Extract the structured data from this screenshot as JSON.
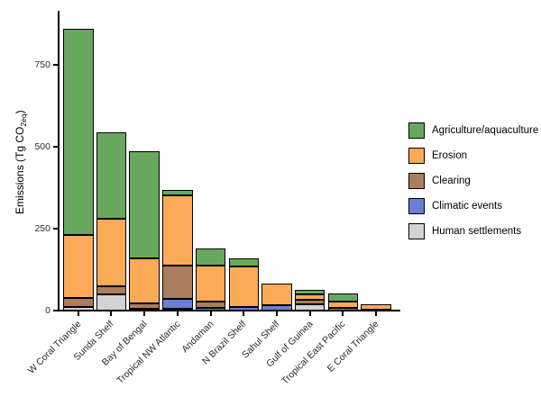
{
  "figure": {
    "background": "#ffffff",
    "axis_color": "#000000",
    "bar_border_color": "#000000",
    "text_color": "#2b2b2b"
  },
  "chart_data": {
    "type": "bar",
    "subtype": "stacked_vertical",
    "title": "",
    "xlabel": "",
    "ylabel_parts": {
      "pre": "Emissions (Tg CO",
      "sub": "2eq",
      "post": ")"
    },
    "ylabel_plain": "Emissions (Tg CO2eq)",
    "ylim": [
      0,
      875
    ],
    "yticks": [
      0,
      250,
      500,
      750
    ],
    "grid": false,
    "legend_position": "right",
    "categories": [
      "W Coral Triangle",
      "Sunda Shelf",
      "Bay of Bengal",
      "Tropical NW Atlantic",
      "Andaman",
      "N Brazil Shelf",
      "Sahul Shelf",
      "Gulf of Guinea",
      "Tropical East Pacific",
      "E Coral Triangle"
    ],
    "stack_order_bottom_to_top": [
      "Human settlements",
      "Climatic events",
      "Clearing",
      "Erosion",
      "Agriculture/aquaculture"
    ],
    "series": [
      {
        "name": "Agriculture/aquaculture",
        "color": "#68a85e",
        "values": [
          630,
          265,
          325,
          15,
          52,
          26,
          0,
          12,
          23,
          0
        ]
      },
      {
        "name": "Erosion",
        "color": "#fbaa57",
        "values": [
          192,
          207,
          138,
          215,
          110,
          124,
          66,
          16,
          20,
          17
        ]
      },
      {
        "name": "Clearing",
        "color": "#a97d5d",
        "values": [
          26,
          23,
          16,
          103,
          20,
          0,
          0,
          16,
          8,
          0
        ]
      },
      {
        "name": "Climatic events",
        "color": "#6980d4",
        "values": [
          0,
          0,
          0,
          29,
          8,
          10,
          16,
          0,
          0,
          3
        ]
      },
      {
        "name": "Human settlements",
        "color": "#d3d3d3",
        "values": [
          12,
          50,
          6,
          6,
          0,
          0,
          0,
          18,
          0,
          0
        ]
      }
    ],
    "totals": [
      860,
      545,
      485,
      368,
      190,
      160,
      82,
      62,
      51,
      20
    ]
  }
}
